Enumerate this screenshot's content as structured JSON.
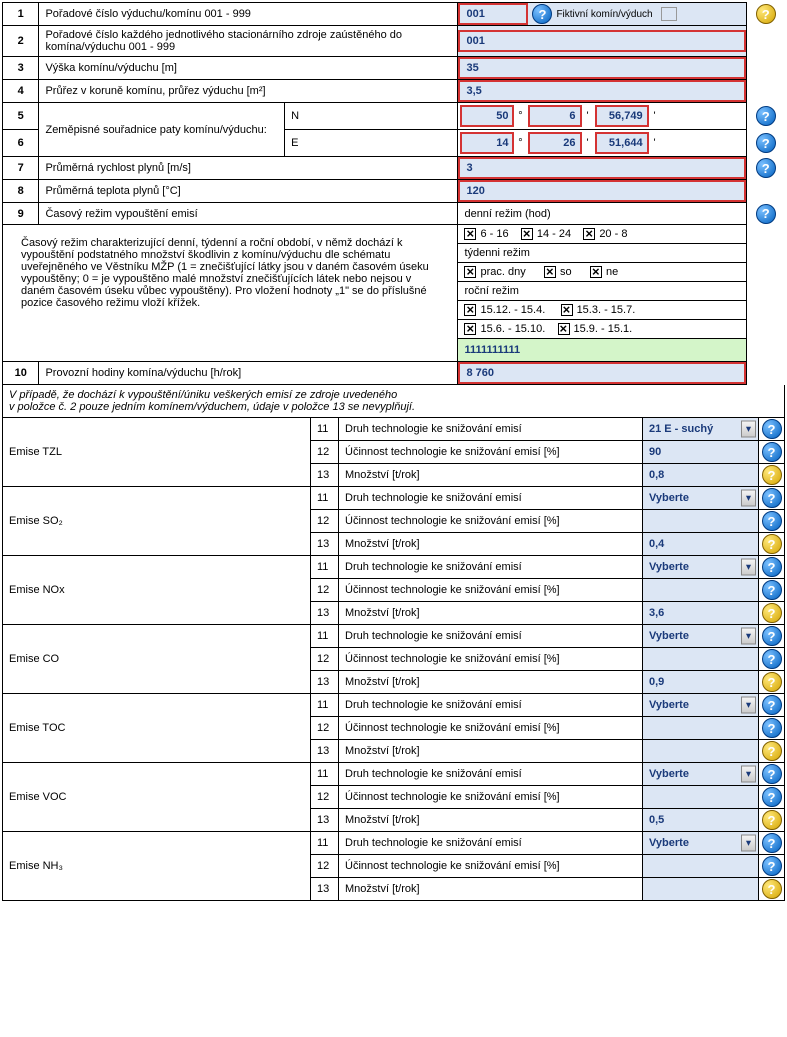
{
  "rows": {
    "r1": {
      "num": "1",
      "label": "Pořadové číslo výduchu/komínu        001 - 999",
      "value": "001",
      "fiktivni_label": "Fiktivní komín/výduch"
    },
    "r2": {
      "num": "2",
      "label": "Pořadové číslo každého jednotlivého stacionárního zdroje zaústěného do komína/výduchu        001 - 999",
      "value": "001"
    },
    "r3": {
      "num": "3",
      "label": "Výška komínu/výduchu     [m]",
      "value": "35"
    },
    "r4": {
      "num": "4",
      "label": "Průřez v koruně komínu, průřez výduchu  [m²]",
      "value": "3,5"
    },
    "r5": {
      "num": "5",
      "label_main": "Zeměpisné souřadnice paty komínu/výduchu:",
      "axis": "N",
      "d": "50",
      "m": "6",
      "s": "56,749"
    },
    "r6": {
      "num": "6",
      "axis": "E",
      "d": "14",
      "m": "26",
      "s": "51,644"
    },
    "r7": {
      "num": "7",
      "label": "Průměrná rychlost plynů    [m/s]",
      "value": "3"
    },
    "r8": {
      "num": "8",
      "label": "Průměrná teplota plynů     [°C]",
      "value": "120"
    },
    "r9": {
      "num": "9",
      "label": "Časový režim vypouštění emisí",
      "value": "denní režim (hod)"
    },
    "regime_desc": "Časový režim charakterizující denní, týdenní a roční období, v němž dochází k vypouštění podstatného množství škodlivin z komínu/výduchu dle schématu uveřejněného ve Věstníku MŽP (1 = znečišťující látky jsou v daném časovém úseku vypouštěny; 0 = je vypouštěno malé množství znečišťujících látek nebo nejsou v daném časovém úseku vůbec vypouštěny). Pro vložení hodnoty „1\" se do příslušné pozice časového režimu vloží křížek.",
    "denni": {
      "a": "6 - 16",
      "b": "14 - 24",
      "c": "20 - 8"
    },
    "tydenni_label": "týdenni režim",
    "tydenni": {
      "a": "prac. dny",
      "b": "so",
      "c": "ne"
    },
    "rocni_label": "roční režim",
    "rocni": {
      "a": "15.12. - 15.4.",
      "b": "15.3. - 15.7.",
      "c": "15.6. - 15.10.",
      "d": "15.9. - 15.1."
    },
    "regime_code": "1111111111",
    "r10": {
      "num": "10",
      "label": "Provozní hodiny komína/výduchu       [h/rok]",
      "value": "8 760"
    }
  },
  "note": "V případě, že dochází k vypouštění/úniku veškerých emisí ze zdroje uvedeného\nv položce č. 2 pouze jedním komínem/výduchem, údaje v položce 13 se nevyplňují.",
  "sub_labels": {
    "n11": "11",
    "l11": "Druh technologie ke snižování emisí",
    "n12": "12",
    "l12": "Účinnost technologie ke snižování emisí [%]",
    "n13": "13",
    "l13": "Množství  [t/rok]"
  },
  "select_default": "Vyberte",
  "emise": [
    {
      "name": "Emise  TZL",
      "select": "21 E - suchý",
      "eff": "90",
      "qty": "0,8"
    },
    {
      "name": "Emise  SO₂",
      "select": "Vyberte",
      "eff": "",
      "qty": "0,4"
    },
    {
      "name": "Emise  NOx",
      "select": "Vyberte",
      "eff": "",
      "qty": "3,6"
    },
    {
      "name": "Emise  CO",
      "select": "Vyberte",
      "eff": "",
      "qty": "0,9"
    },
    {
      "name": "Emise  TOC",
      "select": "Vyberte",
      "eff": "",
      "qty": ""
    },
    {
      "name": "Emise  VOC",
      "select": "Vyberte",
      "eff": "",
      "qty": "0,5"
    },
    {
      "name": "Emise  NH₃",
      "select": "Vyberte",
      "eff": "",
      "qty": ""
    }
  ],
  "colors": {
    "input_bg": "#dce6f4",
    "input_border": "#d43333",
    "green_bg": "#d4f5c9"
  }
}
